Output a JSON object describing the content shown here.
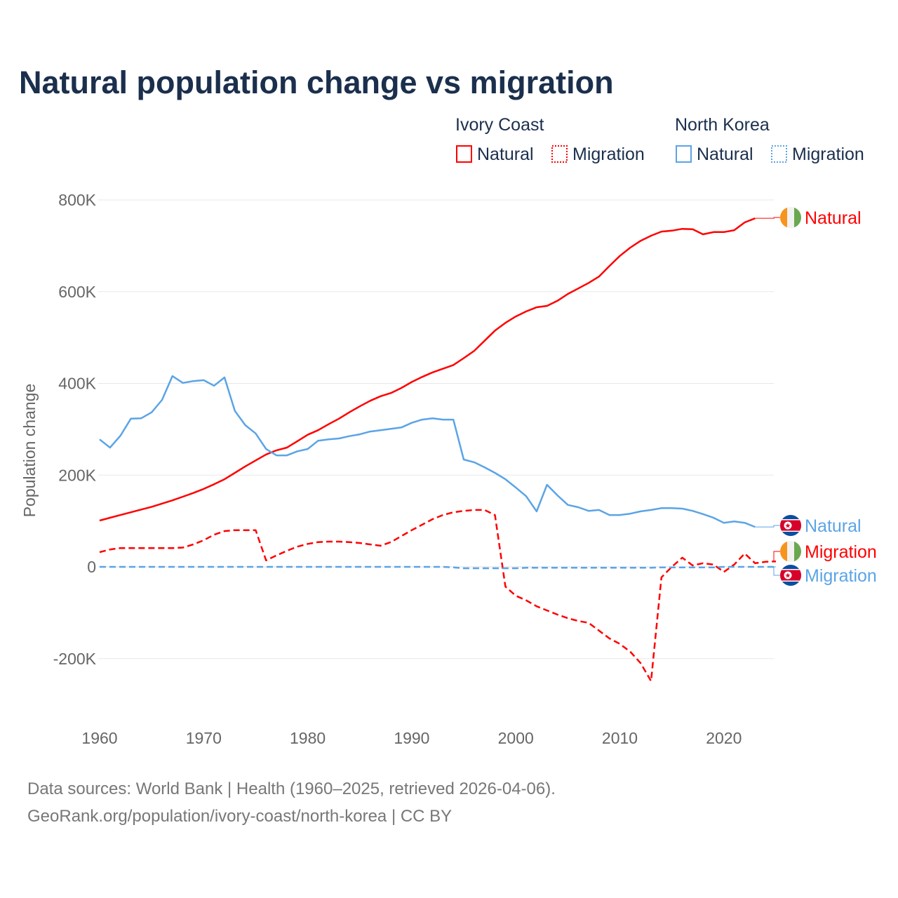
{
  "title": "Natural population change vs migration",
  "legend": {
    "groups": [
      {
        "country": "Ivory Coast",
        "items": [
          "Natural",
          "Migration"
        ]
      },
      {
        "country": "North Korea",
        "items": [
          "Natural",
          "Migration"
        ]
      }
    ]
  },
  "footer": {
    "line1": "Data sources: World Bank | Health (1960–2025, retrieved 2026-04-06).",
    "line2": "GeoRank.org/population/ivory-coast/north-korea | CC BY"
  },
  "colors": {
    "ivory_coast": "#ff0000",
    "north_korea": "#5ba4e6",
    "title": "#1b2f4d"
  },
  "chart_data": {
    "type": "line",
    "title": "Natural population change vs migration",
    "xlabel": "",
    "ylabel": "Population change",
    "xlim": [
      1960,
      2025
    ],
    "ylim": [
      -300000,
      800000
    ],
    "x_ticks": [
      "1960",
      "1970",
      "1980",
      "1990",
      "2000",
      "2010",
      "2020"
    ],
    "y_ticks": [
      {
        "value": 800000,
        "label": "800K"
      },
      {
        "value": 600000,
        "label": "600K"
      },
      {
        "value": 400000,
        "label": "400K"
      },
      {
        "value": 200000,
        "label": "200K"
      },
      {
        "value": 0,
        "label": "0"
      },
      {
        "value": -200000,
        "label": "-200K"
      }
    ],
    "grid": true,
    "legend_position": "top-right",
    "series": [
      {
        "name": "Ivory Coast Natural",
        "country": "Ivory Coast",
        "kind": "Natural",
        "end_label": "Natural",
        "style": "solid",
        "color": "#ff0000",
        "start": 1960,
        "values_k": [
          101,
          107,
          113,
          119,
          125,
          131,
          138,
          145,
          153,
          161,
          170,
          180,
          191,
          205,
          219,
          232,
          245,
          254,
          260,
          274,
          288,
          298,
          311,
          323,
          337,
          350,
          362,
          372,
          379,
          390,
          403,
          414,
          424,
          432,
          440,
          455,
          471,
          493,
          515,
          532,
          546,
          557,
          566,
          569,
          580,
          595,
          607,
          619,
          633,
          656,
          678,
          696,
          711,
          722,
          731,
          733,
          737,
          736,
          725,
          730,
          730,
          734,
          751,
          760
        ]
      },
      {
        "name": "Ivory Coast Migration",
        "country": "Ivory Coast",
        "kind": "Migration",
        "end_label": "Migration",
        "style": "dashed",
        "color": "#ff0000",
        "start": 1960,
        "values_k": [
          32,
          38,
          41,
          41,
          41,
          41,
          41,
          41,
          42,
          49,
          58,
          70,
          78,
          80,
          80,
          80,
          14,
          25,
          35,
          44,
          50,
          54,
          55,
          55,
          54,
          52,
          49,
          46,
          54,
          67,
          80,
          92,
          104,
          113,
          119,
          122,
          124,
          124,
          113,
          -43,
          -63,
          -73,
          -86,
          -95,
          -104,
          -112,
          -118,
          -122,
          -139,
          -156,
          -168,
          -185,
          -210,
          -249,
          -23,
          0,
          20,
          3,
          8,
          5,
          -11,
          5,
          29,
          8,
          11,
          12
        ]
      },
      {
        "name": "North Korea Natural",
        "country": "North Korea",
        "kind": "Natural",
        "end_label": "Natural",
        "style": "solid",
        "color": "#5ba4e6",
        "start": 1960,
        "values_k": [
          278,
          260,
          286,
          323,
          324,
          337,
          364,
          416,
          401,
          405,
          407,
          395,
          413,
          340,
          309,
          291,
          257,
          243,
          243,
          252,
          257,
          275,
          278,
          280,
          285,
          289,
          295,
          298,
          301,
          304,
          314,
          321,
          324,
          321,
          321,
          234,
          228,
          217,
          205,
          191,
          173,
          154,
          121,
          179,
          156,
          135,
          130,
          122,
          124,
          113,
          113,
          116,
          121,
          124,
          128,
          128,
          127,
          122,
          115,
          107,
          96,
          99,
          96,
          87
        ]
      },
      {
        "name": "North Korea Migration",
        "country": "North Korea",
        "kind": "Migration",
        "end_label": "Migration",
        "style": "dashed",
        "color": "#5ba4e6",
        "start": 1960,
        "values_k": [
          0,
          0,
          0,
          0,
          0,
          0,
          0,
          0,
          0,
          0,
          0,
          0,
          0,
          0,
          0,
          0,
          0,
          0,
          0,
          0,
          0,
          0,
          0,
          0,
          0,
          0,
          0,
          0,
          0,
          0,
          0,
          0,
          0,
          0,
          -1,
          -3,
          -3,
          -3,
          -3,
          -3,
          -3,
          -2,
          -2,
          -2,
          -2,
          -2,
          -2,
          -2,
          -2,
          -2,
          -2,
          -2,
          -2,
          -2,
          -1,
          -1,
          -1,
          -1,
          -1,
          -1,
          0,
          0,
          0,
          0,
          0,
          0
        ]
      }
    ]
  }
}
